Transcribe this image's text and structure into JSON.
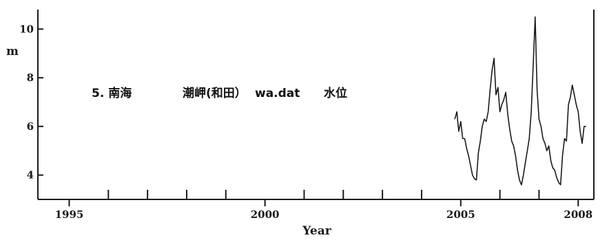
{
  "chart_data": {
    "type": "line",
    "title": "",
    "xlabel": "Year",
    "ylabel": "m",
    "xlim": [
      1994.2,
      2008.4
    ],
    "ylim": [
      3.0,
      10.8
    ],
    "grid": false,
    "annotation": {
      "label": "5. 南海",
      "station": "潮岬(和田）",
      "file": "wa.dat",
      "variable": "水位"
    },
    "x_ticks_labeled": [
      {
        "value": 1995,
        "label": "1995"
      },
      {
        "value": 2000,
        "label": "2000"
      },
      {
        "value": 2005,
        "label": "2005"
      },
      {
        "value": 2008,
        "label": "2008"
      }
    ],
    "x_ticks_minor": [
      1996,
      1997,
      1998,
      1999,
      2001,
      2002,
      2003,
      2004,
      2006,
      2007
    ],
    "y_ticks": [
      {
        "value": 4,
        "label": "4"
      },
      {
        "value": 6,
        "label": "6"
      },
      {
        "value": 8,
        "label": "8"
      },
      {
        "value": 10,
        "label": "10"
      }
    ],
    "series": [
      {
        "color": "#1a1a1a",
        "x": [
          2004.85,
          2004.9,
          2004.95,
          2005.0,
          2005.05,
          2005.1,
          2005.15,
          2005.2,
          2005.25,
          2005.3,
          2005.35,
          2005.4,
          2005.45,
          2005.5,
          2005.55,
          2005.6,
          2005.65,
          2005.7,
          2005.75,
          2005.8,
          2005.85,
          2005.9,
          2005.95,
          2006.0,
          2006.05,
          2006.1,
          2006.15,
          2006.2,
          2006.25,
          2006.3,
          2006.35,
          2006.4,
          2006.45,
          2006.5,
          2006.55,
          2006.6,
          2006.65,
          2006.7,
          2006.75,
          2006.8,
          2006.85,
          2006.9,
          2006.95,
          2007.0,
          2007.05,
          2007.1,
          2007.15,
          2007.2,
          2007.25,
          2007.3,
          2007.35,
          2007.4,
          2007.45,
          2007.5,
          2007.55,
          2007.6,
          2007.65,
          2007.7,
          2007.75,
          2007.8,
          2007.85,
          2007.9,
          2007.95,
          2008.0,
          2008.05,
          2008.1,
          2008.15,
          2008.2
        ],
        "y": [
          6.3,
          6.6,
          5.8,
          6.2,
          5.5,
          5.5,
          5.1,
          4.8,
          4.4,
          4.0,
          3.85,
          3.8,
          4.9,
          5.4,
          6.0,
          6.3,
          6.2,
          6.6,
          7.5,
          8.3,
          8.8,
          7.3,
          7.6,
          6.6,
          6.9,
          7.1,
          7.4,
          6.5,
          5.9,
          5.4,
          5.2,
          4.8,
          4.2,
          3.8,
          3.6,
          4.0,
          4.5,
          5.0,
          5.5,
          6.6,
          8.5,
          10.5,
          7.5,
          6.3,
          6.0,
          5.5,
          5.3,
          5.0,
          5.2,
          4.6,
          4.3,
          4.2,
          3.9,
          3.7,
          3.6,
          4.8,
          5.5,
          5.4,
          6.9,
          7.2,
          7.7,
          7.3,
          6.9,
          6.6,
          5.8,
          5.3,
          6.0,
          6.0
        ]
      }
    ]
  }
}
